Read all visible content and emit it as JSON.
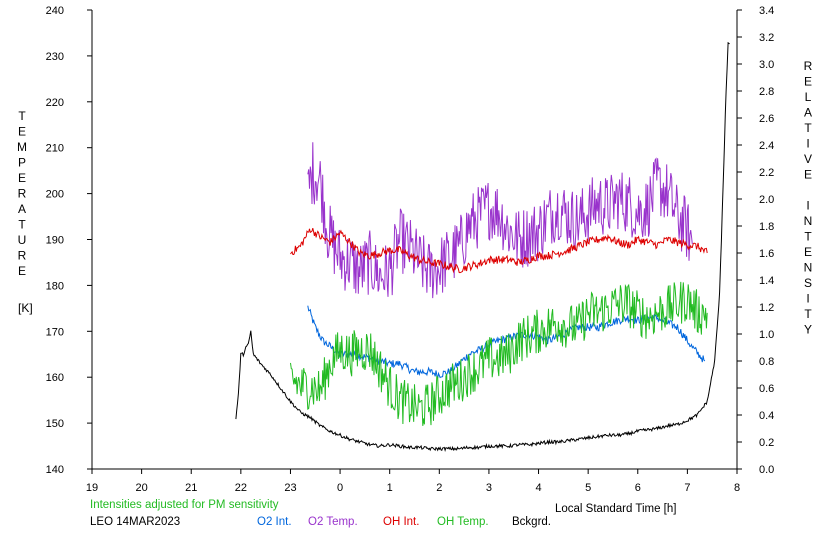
{
  "chart_data": {
    "type": "line",
    "left_axis_label": "TEMPERATURE",
    "left_axis_unit": "[K]",
    "right_axis_label": "RELATIVE INTENSITY",
    "x_axis_label": "Local Standard Time [h]",
    "x_ticks": [
      "19",
      "20",
      "21",
      "22",
      "23",
      "0",
      "1",
      "2",
      "3",
      "4",
      "5",
      "6",
      "7",
      "8"
    ],
    "x_range": [
      19,
      32
    ],
    "y_left_range": [
      140,
      240
    ],
    "y_left_ticks": [
      140,
      150,
      160,
      170,
      180,
      190,
      200,
      210,
      220,
      230,
      240
    ],
    "y_right_range": [
      0.0,
      3.4
    ],
    "y_right_ticks": [
      "0.0",
      "0.2",
      "0.4",
      "0.6",
      "0.8",
      "1.0",
      "1.2",
      "1.4",
      "1.6",
      "1.8",
      "2.0",
      "2.2",
      "2.4",
      "2.6",
      "2.8",
      "3.0",
      "3.2",
      "3.4"
    ],
    "note": "Intensities adjusted for PM sensitivity",
    "station": "LEO 14MAR2023",
    "colors": {
      "axis": "#000000",
      "o2_int": "#0066dd",
      "o2_temp": "#9933cc",
      "oh_int": "#dd0000",
      "oh_temp": "#22bb22",
      "bckgrd": "#000000",
      "note": "#22bb22"
    },
    "series": [
      {
        "name": "O2 Int.",
        "axis": "right",
        "color": "#0066dd",
        "points": [
          [
            23.35,
            1.2
          ],
          [
            23.5,
            1.05
          ],
          [
            23.65,
            0.95
          ],
          [
            24.0,
            0.85
          ],
          [
            24.3,
            0.85
          ],
          [
            24.6,
            0.82
          ],
          [
            24.8,
            0.8
          ],
          [
            25.0,
            0.78
          ],
          [
            25.2,
            0.78
          ],
          [
            25.5,
            0.72
          ],
          [
            25.8,
            0.72
          ],
          [
            26.0,
            0.7
          ],
          [
            26.2,
            0.72
          ],
          [
            26.4,
            0.78
          ],
          [
            26.6,
            0.85
          ],
          [
            26.8,
            0.88
          ],
          [
            27.0,
            0.92
          ],
          [
            27.2,
            0.95
          ],
          [
            27.5,
            0.98
          ],
          [
            27.8,
            1.0
          ],
          [
            28.0,
            0.98
          ],
          [
            28.2,
            0.95
          ],
          [
            28.4,
            0.98
          ],
          [
            28.6,
            1.02
          ],
          [
            28.8,
            1.05
          ],
          [
            29.0,
            1.05
          ],
          [
            29.2,
            1.05
          ],
          [
            29.4,
            1.08
          ],
          [
            29.6,
            1.1
          ],
          [
            29.8,
            1.12
          ],
          [
            30.0,
            1.1
          ],
          [
            30.2,
            1.12
          ],
          [
            30.4,
            1.12
          ],
          [
            30.6,
            1.08
          ],
          [
            30.8,
            1.05
          ],
          [
            31.0,
            0.95
          ],
          [
            31.1,
            0.9
          ],
          [
            31.35,
            0.8
          ]
        ]
      },
      {
        "name": "O2 Temp.",
        "axis": "left",
        "color": "#9933cc",
        "points": [
          [
            23.35,
            200
          ],
          [
            23.45,
            205
          ],
          [
            23.6,
            203
          ],
          [
            23.75,
            192
          ],
          [
            23.9,
            188
          ],
          [
            24.0,
            186
          ],
          [
            24.2,
            185
          ],
          [
            24.4,
            183
          ],
          [
            24.6,
            185
          ],
          [
            24.8,
            182
          ],
          [
            25.0,
            183
          ],
          [
            25.2,
            190
          ],
          [
            25.4,
            188
          ],
          [
            25.6,
            185
          ],
          [
            25.8,
            183
          ],
          [
            26.0,
            184
          ],
          [
            26.2,
            186
          ],
          [
            26.4,
            188
          ],
          [
            26.6,
            193
          ],
          [
            26.8,
            195
          ],
          [
            27.0,
            197
          ],
          [
            27.2,
            196
          ],
          [
            27.4,
            192
          ],
          [
            27.6,
            190
          ],
          [
            27.8,
            191
          ],
          [
            28.0,
            192
          ],
          [
            28.2,
            195
          ],
          [
            28.4,
            197
          ],
          [
            28.6,
            195
          ],
          [
            28.8,
            194
          ],
          [
            29.0,
            196
          ],
          [
            29.2,
            198
          ],
          [
            29.4,
            197
          ],
          [
            29.6,
            199
          ],
          [
            29.8,
            198
          ],
          [
            30.0,
            196
          ],
          [
            30.2,
            197
          ],
          [
            30.4,
            202
          ],
          [
            30.6,
            200
          ],
          [
            30.8,
            195
          ],
          [
            31.0,
            192
          ],
          [
            31.1,
            189
          ]
        ]
      },
      {
        "name": "OH Int.",
        "axis": "right",
        "color": "#dd0000",
        "points": [
          [
            23.0,
            1.6
          ],
          [
            23.2,
            1.65
          ],
          [
            23.4,
            1.78
          ],
          [
            23.6,
            1.72
          ],
          [
            23.8,
            1.68
          ],
          [
            24.0,
            1.75
          ],
          [
            24.2,
            1.68
          ],
          [
            24.4,
            1.6
          ],
          [
            24.6,
            1.58
          ],
          [
            24.8,
            1.6
          ],
          [
            25.0,
            1.62
          ],
          [
            25.2,
            1.62
          ],
          [
            25.4,
            1.58
          ],
          [
            25.6,
            1.55
          ],
          [
            25.8,
            1.53
          ],
          [
            26.0,
            1.52
          ],
          [
            26.2,
            1.5
          ],
          [
            26.4,
            1.48
          ],
          [
            26.6,
            1.5
          ],
          [
            26.8,
            1.52
          ],
          [
            27.0,
            1.55
          ],
          [
            27.2,
            1.55
          ],
          [
            27.4,
            1.55
          ],
          [
            27.6,
            1.53
          ],
          [
            27.8,
            1.55
          ],
          [
            28.0,
            1.58
          ],
          [
            28.2,
            1.58
          ],
          [
            28.4,
            1.6
          ],
          [
            28.6,
            1.62
          ],
          [
            28.8,
            1.65
          ],
          [
            29.0,
            1.68
          ],
          [
            29.2,
            1.7
          ],
          [
            29.4,
            1.72
          ],
          [
            29.6,
            1.68
          ],
          [
            29.8,
            1.66
          ],
          [
            30.0,
            1.7
          ],
          [
            30.2,
            1.68
          ],
          [
            30.4,
            1.66
          ],
          [
            30.6,
            1.7
          ],
          [
            30.8,
            1.68
          ],
          [
            31.0,
            1.66
          ],
          [
            31.2,
            1.65
          ],
          [
            31.4,
            1.6
          ]
        ]
      },
      {
        "name": "OH Temp.",
        "axis": "left",
        "color": "#22bb22",
        "points": [
          [
            23.0,
            160
          ],
          [
            23.2,
            158
          ],
          [
            23.4,
            158
          ],
          [
            23.6,
            157
          ],
          [
            23.8,
            163
          ],
          [
            24.0,
            166
          ],
          [
            24.2,
            165
          ],
          [
            24.4,
            166
          ],
          [
            24.6,
            166
          ],
          [
            24.8,
            162
          ],
          [
            25.0,
            158
          ],
          [
            25.2,
            155
          ],
          [
            25.4,
            154
          ],
          [
            25.6,
            153
          ],
          [
            25.8,
            154
          ],
          [
            26.0,
            156
          ],
          [
            26.2,
            158
          ],
          [
            26.4,
            159
          ],
          [
            26.6,
            161
          ],
          [
            26.8,
            162
          ],
          [
            27.0,
            164
          ],
          [
            27.2,
            164
          ],
          [
            27.4,
            165
          ],
          [
            27.6,
            168
          ],
          [
            27.8,
            169
          ],
          [
            28.0,
            170
          ],
          [
            28.2,
            171
          ],
          [
            28.4,
            172
          ],
          [
            28.6,
            171
          ],
          [
            28.8,
            171
          ],
          [
            29.0,
            174
          ],
          [
            29.2,
            174
          ],
          [
            29.4,
            175
          ],
          [
            29.6,
            176
          ],
          [
            29.8,
            176
          ],
          [
            30.0,
            174
          ],
          [
            30.2,
            173
          ],
          [
            30.4,
            174
          ],
          [
            30.6,
            175
          ],
          [
            30.8,
            176
          ],
          [
            31.0,
            177
          ],
          [
            31.2,
            174
          ],
          [
            31.4,
            174
          ]
        ]
      },
      {
        "name": "Bckgrd.",
        "axis": "right",
        "color": "#000000",
        "points": [
          [
            21.9,
            0.37
          ],
          [
            21.95,
            0.55
          ],
          [
            22.0,
            0.85
          ],
          [
            22.05,
            0.85
          ],
          [
            22.1,
            0.9
          ],
          [
            22.15,
            0.92
          ],
          [
            22.2,
            1.02
          ],
          [
            22.25,
            0.85
          ],
          [
            22.4,
            0.78
          ],
          [
            22.6,
            0.7
          ],
          [
            22.8,
            0.6
          ],
          [
            23.0,
            0.5
          ],
          [
            23.2,
            0.42
          ],
          [
            23.4,
            0.38
          ],
          [
            23.6,
            0.32
          ],
          [
            23.8,
            0.28
          ],
          [
            24.0,
            0.25
          ],
          [
            24.2,
            0.22
          ],
          [
            24.4,
            0.2
          ],
          [
            24.6,
            0.18
          ],
          [
            24.8,
            0.17
          ],
          [
            25.0,
            0.18
          ],
          [
            25.2,
            0.17
          ],
          [
            25.4,
            0.16
          ],
          [
            25.6,
            0.16
          ],
          [
            25.8,
            0.15
          ],
          [
            26.0,
            0.15
          ],
          [
            26.2,
            0.15
          ],
          [
            26.4,
            0.15
          ],
          [
            26.6,
            0.16
          ],
          [
            26.8,
            0.16
          ],
          [
            27.0,
            0.17
          ],
          [
            27.2,
            0.17
          ],
          [
            27.4,
            0.17
          ],
          [
            27.6,
            0.18
          ],
          [
            27.8,
            0.18
          ],
          [
            28.0,
            0.19
          ],
          [
            28.2,
            0.2
          ],
          [
            28.4,
            0.2
          ],
          [
            28.6,
            0.21
          ],
          [
            28.8,
            0.22
          ],
          [
            29.0,
            0.23
          ],
          [
            29.2,
            0.24
          ],
          [
            29.4,
            0.25
          ],
          [
            29.6,
            0.25
          ],
          [
            29.8,
            0.26
          ],
          [
            30.0,
            0.28
          ],
          [
            30.2,
            0.29
          ],
          [
            30.4,
            0.3
          ],
          [
            30.6,
            0.32
          ],
          [
            30.8,
            0.33
          ],
          [
            31.0,
            0.36
          ],
          [
            31.2,
            0.4
          ],
          [
            31.4,
            0.5
          ],
          [
            31.55,
            0.8
          ],
          [
            31.65,
            1.3
          ],
          [
            31.72,
            2.1
          ],
          [
            31.78,
            2.8
          ],
          [
            31.82,
            3.15
          ],
          [
            31.85,
            3.15
          ]
        ]
      }
    ]
  }
}
